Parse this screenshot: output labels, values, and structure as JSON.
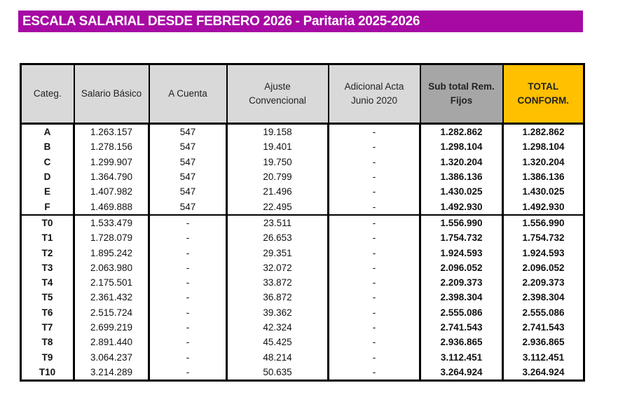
{
  "title": "ESCALA SALARIAL DESDE FEBRERO 2026 - Paritaria 2025-2026",
  "headers": {
    "categ": "Categ.",
    "basico": "Salario Básico",
    "cuenta": "A Cuenta",
    "ajuste1": "Ajuste",
    "ajuste2": "Convencional",
    "adic1": "Adicional Acta",
    "adic2": "Junio 2020",
    "sub1": "Sub total Rem.",
    "sub2": "Fijos",
    "tot1": "TOTAL",
    "tot2": "CONFORM."
  },
  "rows": [
    [
      "A",
      "1.263.157",
      "547",
      "19.158",
      "-",
      "1.282.862",
      "1.282.862"
    ],
    [
      "B",
      "1.278.156",
      "547",
      "19.401",
      "-",
      "1.298.104",
      "1.298.104"
    ],
    [
      "C",
      "1.299.907",
      "547",
      "19.750",
      "-",
      "1.320.204",
      "1.320.204"
    ],
    [
      "D",
      "1.364.790",
      "547",
      "20.799",
      "-",
      "1.386.136",
      "1.386.136"
    ],
    [
      "E",
      "1.407.982",
      "547",
      "21.496",
      "-",
      "1.430.025",
      "1.430.025"
    ],
    [
      "F",
      "1.469.888",
      "547",
      "22.495",
      "-",
      "1.492.930",
      "1.492.930"
    ],
    [
      "T0",
      "1.533.479",
      "-",
      "23.511",
      "-",
      "1.556.990",
      "1.556.990"
    ],
    [
      "T1",
      "1.728.079",
      "-",
      "26.653",
      "-",
      "1.754.732",
      "1.754.732"
    ],
    [
      "T2",
      "1.895.242",
      "-",
      "29.351",
      "-",
      "1.924.593",
      "1.924.593"
    ],
    [
      "T3",
      "2.063.980",
      "-",
      "32.072",
      "-",
      "2.096.052",
      "2.096.052"
    ],
    [
      "T4",
      "2.175.501",
      "-",
      "33.872",
      "-",
      "2.209.373",
      "2.209.373"
    ],
    [
      "T5",
      "2.361.432",
      "-",
      "36.872",
      "-",
      "2.398.304",
      "2.398.304"
    ],
    [
      "T6",
      "2.515.724",
      "-",
      "39.362",
      "-",
      "2.555.086",
      "2.555.086"
    ],
    [
      "T7",
      "2.699.219",
      "-",
      "42.324",
      "-",
      "2.741.543",
      "2.741.543"
    ],
    [
      "T8",
      "2.891.440",
      "-",
      "45.425",
      "-",
      "2.936.865",
      "2.936.865"
    ],
    [
      "T9",
      "3.064.237",
      "-",
      "48.214",
      "-",
      "3.112.451",
      "3.112.451"
    ],
    [
      "T10",
      "3.214.289",
      "-",
      "50.635",
      "-",
      "3.264.924",
      "3.264.924"
    ]
  ]
}
